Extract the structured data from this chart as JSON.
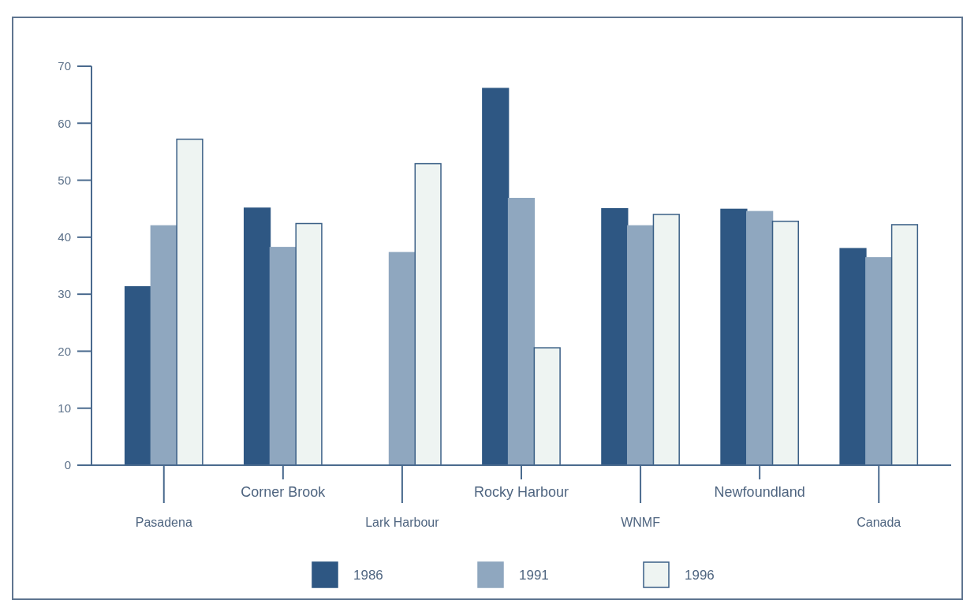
{
  "chart_data": {
    "type": "bar",
    "categories": [
      "Pasadena",
      "Corner Brook",
      "Lark Harbour",
      "Rocky Harbour",
      "WNMF",
      "Newfoundland",
      "Canada"
    ],
    "series": [
      {
        "name": "1986",
        "color": "#2e5783",
        "values": [
          31.3,
          45.1,
          null,
          66.1,
          45.0,
          44.9,
          38.0
        ]
      },
      {
        "name": "1991",
        "color": "#8fa7bf",
        "values": [
          42.0,
          38.2,
          37.3,
          46.8,
          42.0,
          44.5,
          36.4
        ]
      },
      {
        "name": "1996",
        "color": "#eef4f2",
        "values": [
          57.2,
          42.4,
          52.9,
          20.6,
          44.0,
          42.8,
          42.2
        ]
      }
    ],
    "ylim": [
      0,
      70
    ],
    "yticks": [
      0,
      10,
      20,
      30,
      40,
      50,
      60,
      70
    ],
    "grid": false,
    "legend": "bottom"
  }
}
